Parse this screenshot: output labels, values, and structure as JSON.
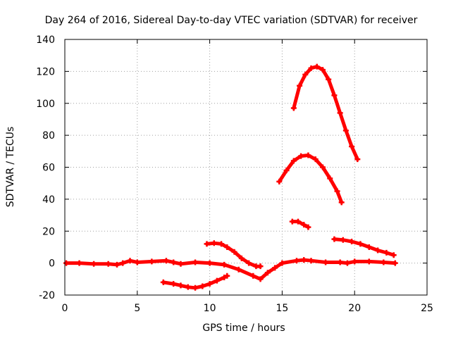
{
  "chart_data": {
    "type": "line",
    "title": "Day 264 of 2016, Sidereal Day-to-day VTEC variation (SDTVAR) for receiver",
    "xlabel": "GPS time / hours",
    "ylabel": "SDTVAR / TECUs",
    "xlim": [
      0,
      25
    ],
    "ylim": [
      -20,
      140
    ],
    "xticks": [
      "0",
      "5",
      "10",
      "15",
      "20",
      "25"
    ],
    "yticks": [
      "-20",
      "0",
      "20",
      "40",
      "60",
      "80",
      "100",
      "120",
      "140"
    ],
    "grid": true,
    "color": "#ff0000",
    "marker": "plus",
    "series": [
      {
        "x": [
          0.1,
          1,
          2,
          3,
          3.6,
          4,
          4.5,
          5,
          6,
          7,
          7.5,
          8,
          9,
          10,
          11,
          12,
          13,
          13.5,
          14,
          14.5,
          15,
          16,
          16.5,
          17,
          18,
          19,
          19.5,
          20,
          21,
          22,
          22.8
        ],
        "y": [
          0,
          0,
          -0.5,
          -0.5,
          -1,
          0,
          1.5,
          0.5,
          1,
          1.5,
          0.5,
          -0.5,
          0.5,
          0,
          -1,
          -4,
          -8,
          -10,
          -6,
          -3,
          0,
          1.5,
          2,
          1.5,
          0.5,
          0.5,
          0,
          1,
          1,
          0.5,
          0
        ]
      },
      {
        "x": [
          6.8,
          7.5,
          8,
          8.5,
          9,
          9.5,
          10,
          10.5,
          11,
          11.2
        ],
        "y": [
          -12,
          -13,
          -14,
          -15,
          -15.5,
          -14.5,
          -13,
          -11,
          -9,
          -8
        ]
      },
      {
        "x": [
          9.8,
          10.3,
          10.8,
          11.2,
          11.7,
          12.2,
          12.7,
          13.2,
          13.5
        ],
        "y": [
          12,
          12.5,
          12,
          10,
          7,
          3,
          0,
          -2,
          -2
        ]
      },
      {
        "x": [
          14.8,
          15.3,
          15.8,
          16.3,
          16.8,
          17.3,
          17.8,
          18.3,
          18.8,
          19.1
        ],
        "y": [
          51,
          58,
          64,
          67,
          67.5,
          65,
          60,
          53,
          45,
          38
        ]
      },
      {
        "x": [
          15.7,
          16.1,
          16.5,
          16.8
        ],
        "y": [
          26,
          26,
          24,
          22.5
        ]
      },
      {
        "x": [
          15.8,
          16.2,
          16.6,
          17,
          17.4,
          17.8,
          18.2,
          18.6,
          19,
          19.4,
          19.8,
          20.2
        ],
        "y": [
          97,
          111,
          118,
          122,
          123,
          121,
          115,
          105,
          94,
          83,
          73,
          65
        ]
      },
      {
        "x": [
          18.6,
          19.2,
          19.8,
          20.4,
          21,
          21.6,
          22.2,
          22.7
        ],
        "y": [
          15,
          14.5,
          13.5,
          12,
          10,
          8,
          6.5,
          5
        ]
      }
    ]
  }
}
